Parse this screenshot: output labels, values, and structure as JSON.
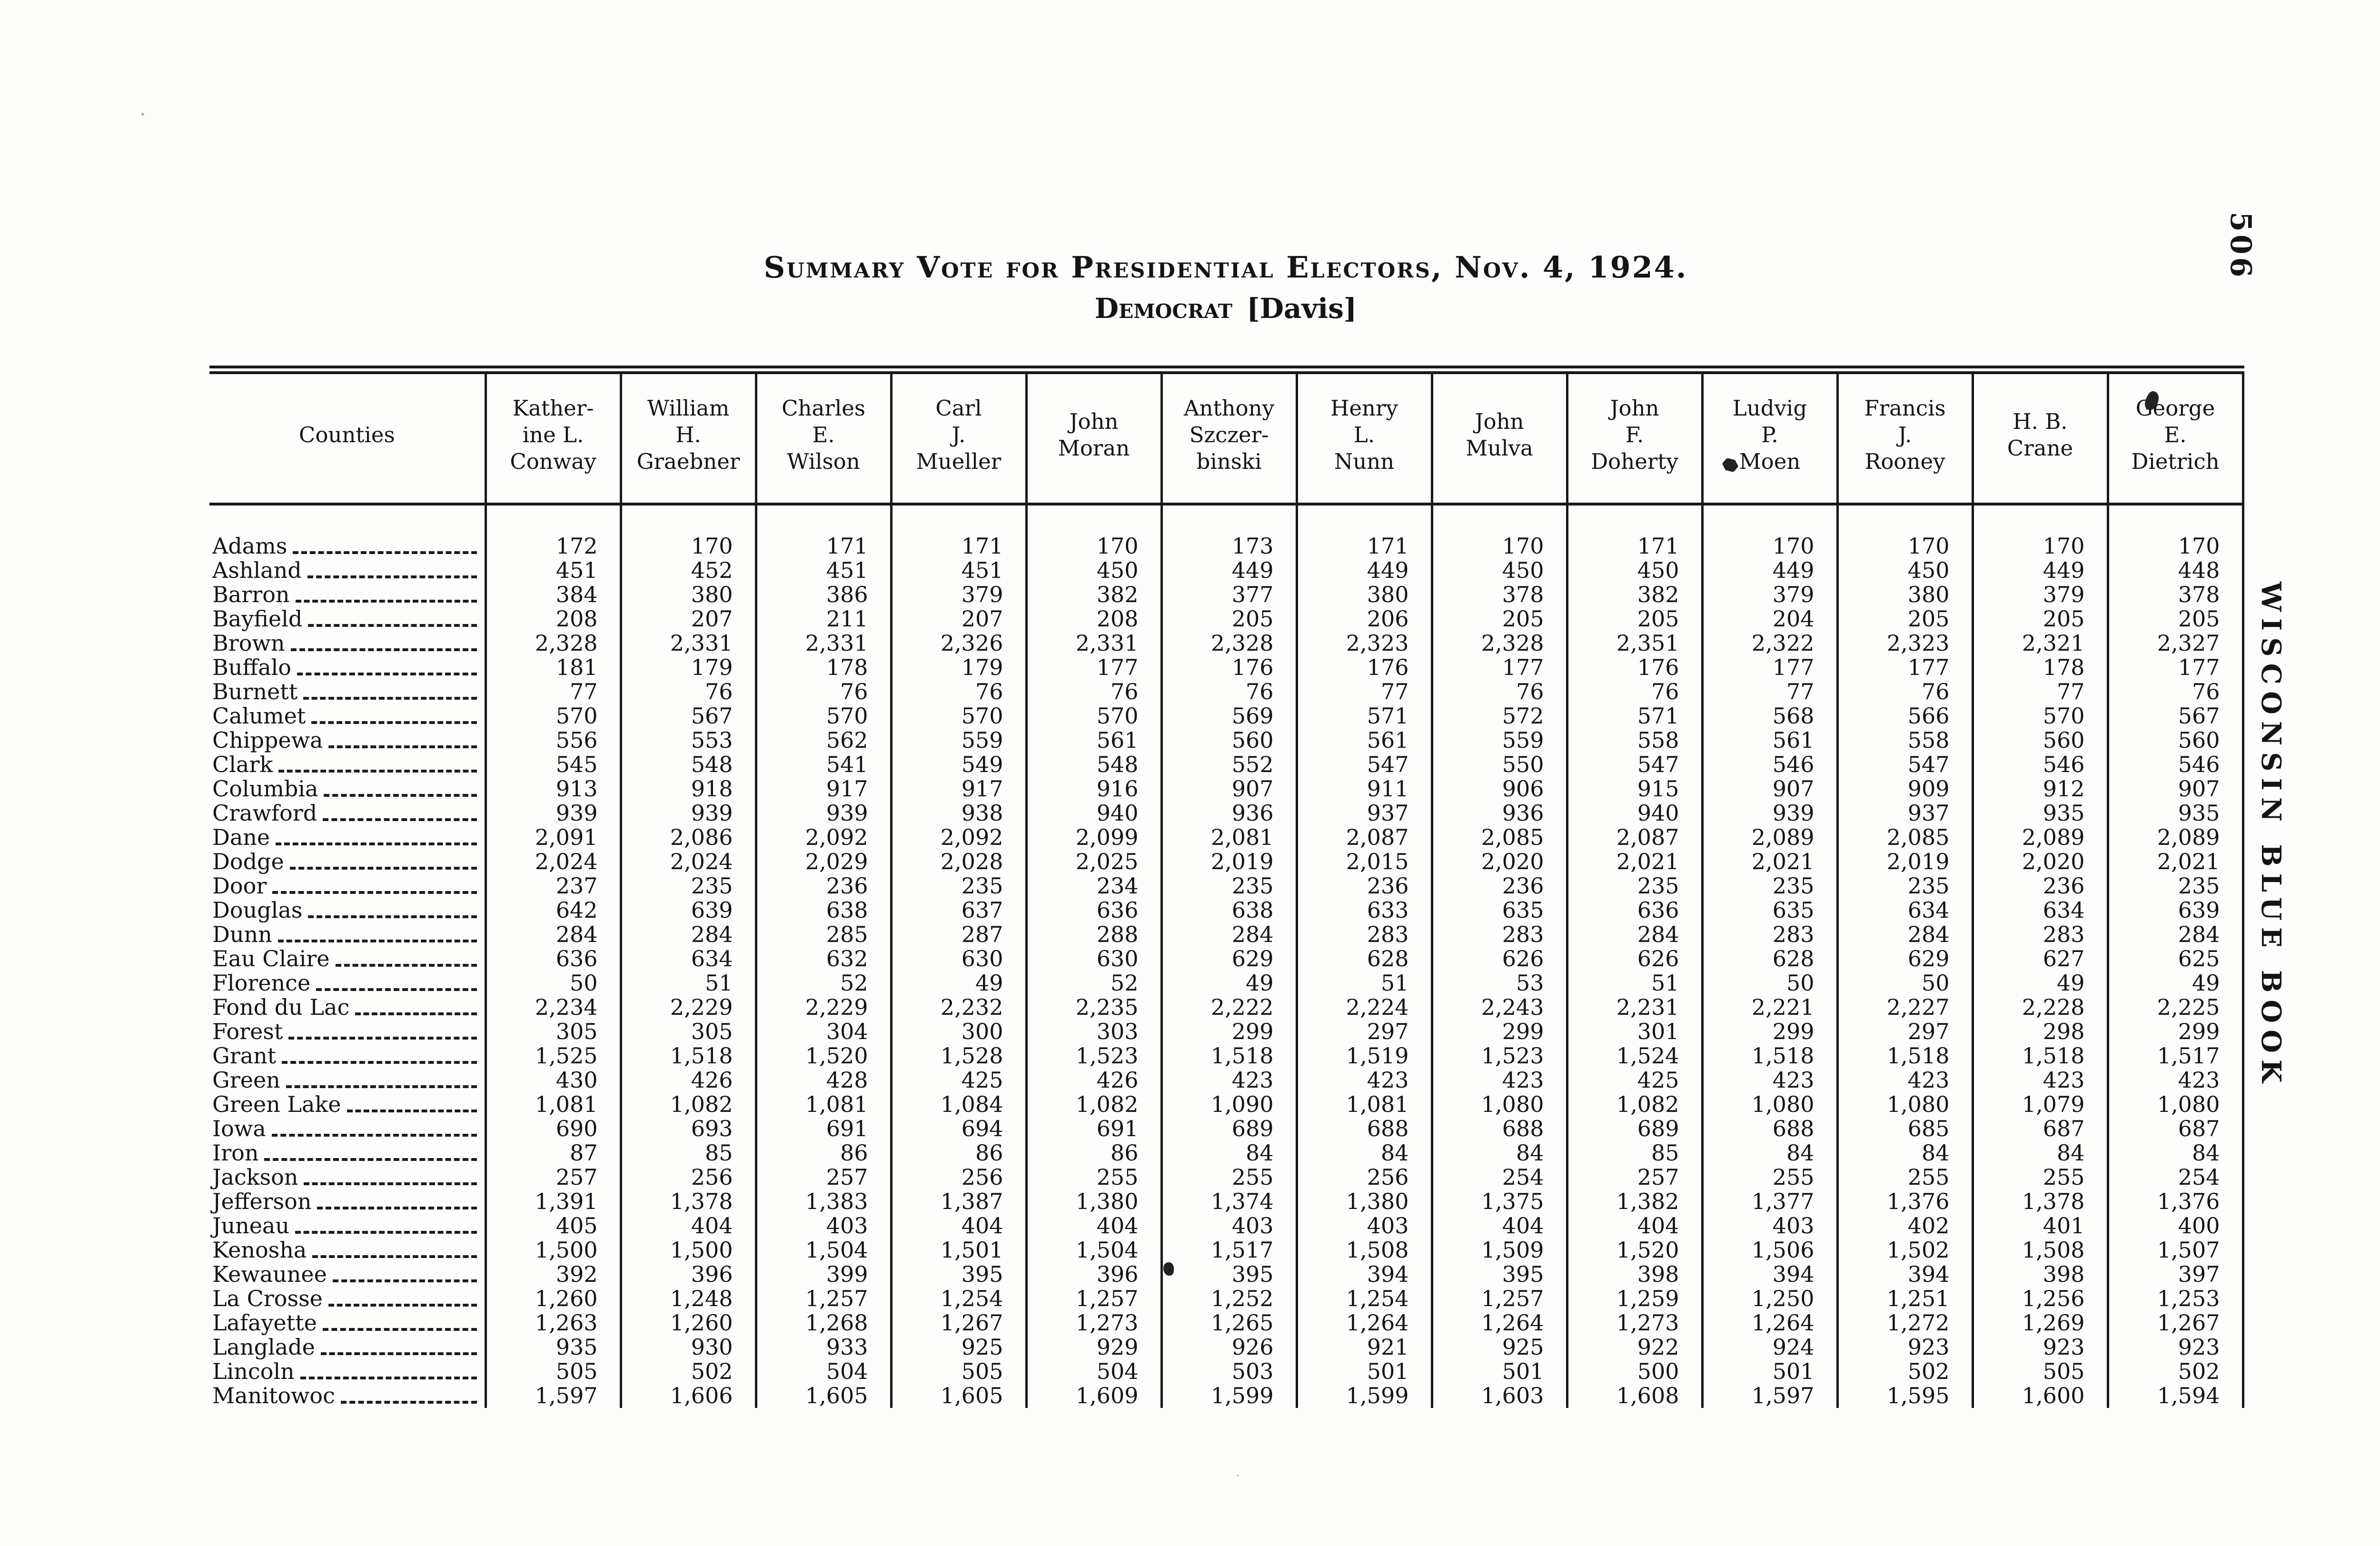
{
  "page": {
    "number": "506",
    "side_title": "WISCONSIN BLUE BOOK"
  },
  "title": "Summary Vote for Presidential Electors, Nov. 4, 1924.",
  "subtitle": {
    "party": "Democrat",
    "candidate": "[Davis]"
  },
  "table": {
    "columns": [
      "Counties",
      "Kather-\nine L.\nConway",
      "William\nH.\nGraebner",
      "Charles\nE.\nWilson",
      "Carl\nJ.\nMueller",
      "John\nMoran",
      "Anthony\nSzczer-\nbinski",
      "Henry\nL.\nNunn",
      "John\nMulva",
      "John\nF.\nDoherty",
      "Ludvig\nP.\nMoen",
      "Francis\nJ.\nRooney",
      "H. B.\nCrane",
      "George\nE.\nDietrich"
    ],
    "rows": [
      {
        "county": "Adams",
        "values": [
          "172",
          "170",
          "171",
          "171",
          "170",
          "173",
          "171",
          "170",
          "171",
          "170",
          "170",
          "170",
          "170"
        ]
      },
      {
        "county": "Ashland",
        "values": [
          "451",
          "452",
          "451",
          "451",
          "450",
          "449",
          "449",
          "450",
          "450",
          "449",
          "450",
          "449",
          "448"
        ]
      },
      {
        "county": "Barron",
        "values": [
          "384",
          "380",
          "386",
          "379",
          "382",
          "377",
          "380",
          "378",
          "382",
          "379",
          "380",
          "379",
          "378"
        ]
      },
      {
        "county": "Bayfield",
        "values": [
          "208",
          "207",
          "211",
          "207",
          "208",
          "205",
          "206",
          "205",
          "205",
          "204",
          "205",
          "205",
          "205"
        ]
      },
      {
        "county": "Brown",
        "values": [
          "2,328",
          "2,331",
          "2,331",
          "2,326",
          "2,331",
          "2,328",
          "2,323",
          "2,328",
          "2,351",
          "2,322",
          "2,323",
          "2,321",
          "2,327"
        ]
      },
      {
        "county": "Buffalo",
        "values": [
          "181",
          "179",
          "178",
          "179",
          "177",
          "176",
          "176",
          "177",
          "176",
          "177",
          "177",
          "178",
          "177"
        ]
      },
      {
        "county": "Burnett",
        "values": [
          "77",
          "76",
          "76",
          "76",
          "76",
          "76",
          "77",
          "76",
          "76",
          "77",
          "76",
          "77",
          "76"
        ]
      },
      {
        "county": "Calumet",
        "values": [
          "570",
          "567",
          "570",
          "570",
          "570",
          "569",
          "571",
          "572",
          "571",
          "568",
          "566",
          "570",
          "567"
        ]
      },
      {
        "county": "Chippewa",
        "values": [
          "556",
          "553",
          "562",
          "559",
          "561",
          "560",
          "561",
          "559",
          "558",
          "561",
          "558",
          "560",
          "560"
        ]
      },
      {
        "county": "Clark",
        "values": [
          "545",
          "548",
          "541",
          "549",
          "548",
          "552",
          "547",
          "550",
          "547",
          "546",
          "547",
          "546",
          "546"
        ]
      },
      {
        "county": "Columbia",
        "values": [
          "913",
          "918",
          "917",
          "917",
          "916",
          "907",
          "911",
          "906",
          "915",
          "907",
          "909",
          "912",
          "907"
        ]
      },
      {
        "county": "Crawford",
        "values": [
          "939",
          "939",
          "939",
          "938",
          "940",
          "936",
          "937",
          "936",
          "940",
          "939",
          "937",
          "935",
          "935"
        ]
      },
      {
        "county": "Dane",
        "values": [
          "2,091",
          "2,086",
          "2,092",
          "2,092",
          "2,099",
          "2,081",
          "2,087",
          "2,085",
          "2,087",
          "2,089",
          "2,085",
          "2,089",
          "2,089"
        ]
      },
      {
        "county": "Dodge",
        "values": [
          "2,024",
          "2,024",
          "2,029",
          "2,028",
          "2,025",
          "2,019",
          "2,015",
          "2,020",
          "2,021",
          "2,021",
          "2,019",
          "2,020",
          "2,021"
        ]
      },
      {
        "county": "Door",
        "values": [
          "237",
          "235",
          "236",
          "235",
          "234",
          "235",
          "236",
          "236",
          "235",
          "235",
          "235",
          "236",
          "235"
        ]
      },
      {
        "county": "Douglas",
        "values": [
          "642",
          "639",
          "638",
          "637",
          "636",
          "638",
          "633",
          "635",
          "636",
          "635",
          "634",
          "634",
          "639"
        ]
      },
      {
        "county": "Dunn",
        "values": [
          "284",
          "284",
          "285",
          "287",
          "288",
          "284",
          "283",
          "283",
          "284",
          "283",
          "284",
          "283",
          "284"
        ]
      },
      {
        "county": "Eau Claire",
        "values": [
          "636",
          "634",
          "632",
          "630",
          "630",
          "629",
          "628",
          "626",
          "626",
          "628",
          "629",
          "627",
          "625"
        ]
      },
      {
        "county": "Florence",
        "values": [
          "50",
          "51",
          "52",
          "49",
          "52",
          "49",
          "51",
          "53",
          "51",
          "50",
          "50",
          "49",
          "49"
        ]
      },
      {
        "county": "Fond du Lac",
        "values": [
          "2,234",
          "2,229",
          "2,229",
          "2,232",
          "2,235",
          "2,222",
          "2,224",
          "2,243",
          "2,231",
          "2,221",
          "2,227",
          "2,228",
          "2,225"
        ]
      },
      {
        "county": "Forest",
        "values": [
          "305",
          "305",
          "304",
          "300",
          "303",
          "299",
          "297",
          "299",
          "301",
          "299",
          "297",
          "298",
          "299"
        ]
      },
      {
        "county": "Grant",
        "values": [
          "1,525",
          "1,518",
          "1,520",
          "1,528",
          "1,523",
          "1,518",
          "1,519",
          "1,523",
          "1,524",
          "1,518",
          "1,518",
          "1,518",
          "1,517"
        ]
      },
      {
        "county": "Green",
        "values": [
          "430",
          "426",
          "428",
          "425",
          "426",
          "423",
          "423",
          "423",
          "425",
          "423",
          "423",
          "423",
          "423"
        ]
      },
      {
        "county": "Green Lake",
        "values": [
          "1,081",
          "1,082",
          "1,081",
          "1,084",
          "1,082",
          "1,090",
          "1,081",
          "1,080",
          "1,082",
          "1,080",
          "1,080",
          "1,079",
          "1,080"
        ]
      },
      {
        "county": "Iowa",
        "values": [
          "690",
          "693",
          "691",
          "694",
          "691",
          "689",
          "688",
          "688",
          "689",
          "688",
          "685",
          "687",
          "687"
        ]
      },
      {
        "county": "Iron",
        "values": [
          "87",
          "85",
          "86",
          "86",
          "86",
          "84",
          "84",
          "84",
          "85",
          "84",
          "84",
          "84",
          "84"
        ]
      },
      {
        "county": "Jackson",
        "values": [
          "257",
          "256",
          "257",
          "256",
          "255",
          "255",
          "256",
          "254",
          "257",
          "255",
          "255",
          "255",
          "254"
        ]
      },
      {
        "county": "Jefferson",
        "values": [
          "1,391",
          "1,378",
          "1,383",
          "1,387",
          "1,380",
          "1,374",
          "1,380",
          "1,375",
          "1,382",
          "1,377",
          "1,376",
          "1,378",
          "1,376"
        ]
      },
      {
        "county": "Juneau",
        "values": [
          "405",
          "404",
          "403",
          "404",
          "404",
          "403",
          "403",
          "404",
          "404",
          "403",
          "402",
          "401",
          "400"
        ]
      },
      {
        "county": "Kenosha",
        "values": [
          "1,500",
          "1,500",
          "1,504",
          "1,501",
          "1,504",
          "1,517",
          "1,508",
          "1,509",
          "1,520",
          "1,506",
          "1,502",
          "1,508",
          "1,507"
        ]
      },
      {
        "county": "Kewaunee",
        "values": [
          "392",
          "396",
          "399",
          "395",
          "396",
          "395",
          "394",
          "395",
          "398",
          "394",
          "394",
          "398",
          "397"
        ]
      },
      {
        "county": "La Crosse",
        "values": [
          "1,260",
          "1,248",
          "1,257",
          "1,254",
          "1,257",
          "1,252",
          "1,254",
          "1,257",
          "1,259",
          "1,250",
          "1,251",
          "1,256",
          "1,253"
        ]
      },
      {
        "county": "Lafayette",
        "values": [
          "1,263",
          "1,260",
          "1,268",
          "1,267",
          "1,273",
          "1,265",
          "1,264",
          "1,264",
          "1,273",
          "1,264",
          "1,272",
          "1,269",
          "1,267"
        ]
      },
      {
        "county": "Langlade",
        "values": [
          "935",
          "930",
          "933",
          "925",
          "929",
          "926",
          "921",
          "925",
          "922",
          "924",
          "923",
          "923",
          "923"
        ]
      },
      {
        "county": "Lincoln",
        "values": [
          "505",
          "502",
          "504",
          "505",
          "504",
          "503",
          "501",
          "501",
          "500",
          "501",
          "502",
          "505",
          "502"
        ]
      },
      {
        "county": "Manitowoc",
        "values": [
          "1,597",
          "1,606",
          "1,605",
          "1,605",
          "1,609",
          "1,599",
          "1,599",
          "1,603",
          "1,608",
          "1,597",
          "1,595",
          "1,600",
          "1,594"
        ]
      }
    ]
  }
}
